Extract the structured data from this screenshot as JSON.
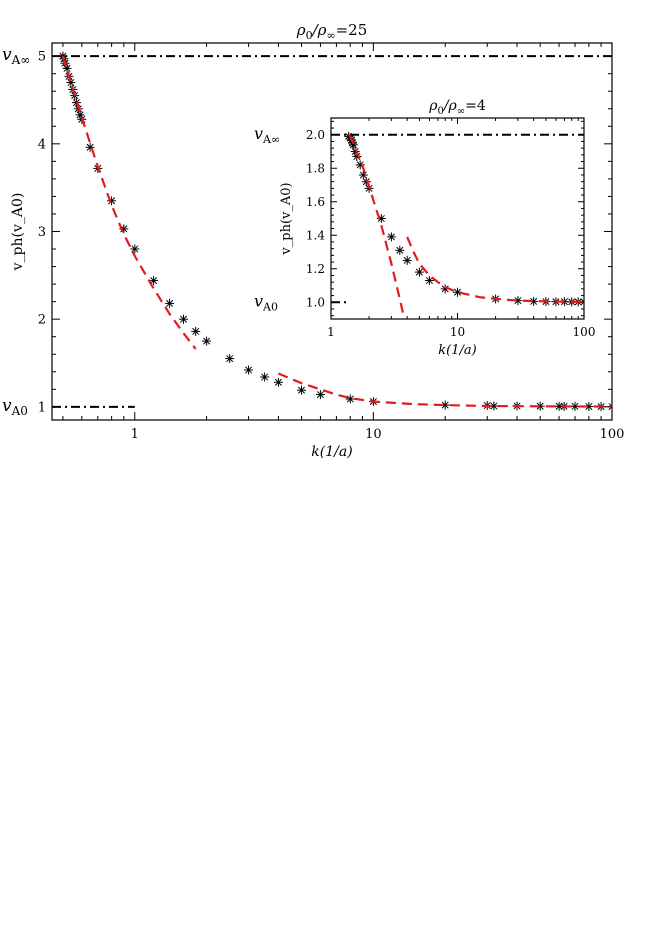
{
  "chart_data": [
    {
      "id": "main",
      "type": "scatter",
      "title_prefix": "ρ",
      "title_sub0": "0",
      "title_mid": "/ρ",
      "title_subinf": "∞",
      "title_value": "=25",
      "xlabel": "k(1/a)",
      "ylabel": "v_ph(v_A0)",
      "xscale": "log",
      "xlim": [
        0.45,
        100
      ],
      "ylim": [
        0.85,
        5.15
      ],
      "xticks": [
        {
          "v": 1,
          "label": "1"
        },
        {
          "v": 10,
          "label": "10"
        },
        {
          "v": 100,
          "label": "100"
        }
      ],
      "yticks": [
        {
          "v": 1,
          "label": "1"
        },
        {
          "v": 2,
          "label": "2"
        },
        {
          "v": 3,
          "label": "3"
        },
        {
          "v": 4,
          "label": "4"
        },
        {
          "v": 5,
          "label": "5"
        }
      ],
      "hlines": [
        {
          "label": "v_A∞",
          "y": 5,
          "x_from": 0.45,
          "x_to": 100
        },
        {
          "label": "v_A0",
          "y": 1,
          "x_from": 0.45,
          "x_to": 1
        }
      ],
      "series": [
        {
          "kind": "stars",
          "color": "#000000",
          "points": [
            [
              0.5,
              5.0
            ],
            [
              0.505,
              4.97
            ],
            [
              0.51,
              4.92
            ],
            [
              0.52,
              4.86
            ],
            [
              0.53,
              4.77
            ],
            [
              0.54,
              4.7
            ],
            [
              0.55,
              4.62
            ],
            [
              0.56,
              4.55
            ],
            [
              0.57,
              4.47
            ],
            [
              0.58,
              4.4
            ],
            [
              0.59,
              4.33
            ],
            [
              0.6,
              4.28
            ],
            [
              0.65,
              3.96
            ],
            [
              0.7,
              3.72
            ],
            [
              0.8,
              3.35
            ],
            [
              0.9,
              3.03
            ],
            [
              1.0,
              2.8
            ],
            [
              1.2,
              2.44
            ],
            [
              1.4,
              2.18
            ],
            [
              1.6,
              2.0
            ],
            [
              1.8,
              1.86
            ],
            [
              2.0,
              1.75
            ],
            [
              2.5,
              1.55
            ],
            [
              3.0,
              1.42
            ],
            [
              3.5,
              1.34
            ],
            [
              4.0,
              1.28
            ],
            [
              5.0,
              1.19
            ],
            [
              6.0,
              1.14
            ],
            [
              8.0,
              1.09
            ],
            [
              10,
              1.06
            ],
            [
              20,
              1.02
            ],
            [
              30,
              1.015
            ],
            [
              32,
              1.01
            ],
            [
              40,
              1.01
            ],
            [
              50,
              1.007
            ],
            [
              60,
              1.006
            ],
            [
              63,
              1.005
            ],
            [
              70,
              1.005
            ],
            [
              80,
              1.004
            ],
            [
              90,
              1.003
            ],
            [
              100,
              1.003
            ]
          ]
        },
        {
          "kind": "dashed",
          "color": "#e41a1c",
          "points": [
            [
              0.5,
              5.0
            ],
            [
              0.55,
              4.63
            ],
            [
              0.6,
              4.3
            ],
            [
              0.7,
              3.74
            ],
            [
              0.8,
              3.3
            ],
            [
              0.9,
              2.97
            ],
            [
              1.0,
              2.72
            ],
            [
              1.2,
              2.35
            ],
            [
              1.4,
              2.06
            ],
            [
              1.6,
              1.84
            ],
            [
              1.8,
              1.66
            ]
          ]
        },
        {
          "kind": "dashed",
          "color": "#e41a1c",
          "points": [
            [
              4.0,
              1.38
            ],
            [
              5.0,
              1.27
            ],
            [
              6.0,
              1.2
            ],
            [
              7.0,
              1.14
            ],
            [
              8.0,
              1.1
            ],
            [
              10,
              1.06
            ],
            [
              15,
              1.03
            ],
            [
              20,
              1.02
            ],
            [
              30,
              1.01
            ],
            [
              50,
              1.006
            ],
            [
              100,
              1.003
            ]
          ]
        }
      ]
    },
    {
      "id": "inset",
      "type": "scatter",
      "title_prefix": "ρ",
      "title_sub0": "0",
      "title_mid": "/ρ",
      "title_subinf": "∞",
      "title_value": "=4",
      "xlabel": "k(1/a)",
      "ylabel": "v_ph(v_A0)",
      "xscale": "log",
      "xlim": [
        1,
        100
      ],
      "ylim": [
        0.9,
        2.1
      ],
      "xticks": [
        {
          "v": 1,
          "label": "1"
        },
        {
          "v": 10,
          "label": "10"
        },
        {
          "v": 100,
          "label": "100"
        }
      ],
      "yticks": [
        {
          "v": 1.0,
          "label": "1.0"
        },
        {
          "v": 1.2,
          "label": "1.2"
        },
        {
          "v": 1.4,
          "label": "1.4"
        },
        {
          "v": 1.6,
          "label": "1.6"
        },
        {
          "v": 1.8,
          "label": "1.8"
        },
        {
          "v": 2.0,
          "label": "2.0"
        }
      ],
      "hlines": [
        {
          "label": "v_A∞",
          "y": 2.0,
          "x_from": 1,
          "x_to": 100
        },
        {
          "label": "v_A0",
          "y": 1.0,
          "x_from": 1,
          "x_to": 1.4
        }
      ],
      "series": [
        {
          "kind": "stars",
          "color": "#000000",
          "points": [
            [
              1.38,
              1.99
            ],
            [
              1.42,
              1.98
            ],
            [
              1.45,
              1.97
            ],
            [
              1.48,
              1.95
            ],
            [
              1.5,
              1.94
            ],
            [
              1.55,
              1.9
            ],
            [
              1.6,
              1.87
            ],
            [
              1.7,
              1.82
            ],
            [
              1.8,
              1.76
            ],
            [
              1.9,
              1.72
            ],
            [
              2.0,
              1.68
            ],
            [
              2.5,
              1.5
            ],
            [
              3.0,
              1.39
            ],
            [
              3.5,
              1.31
            ],
            [
              4.0,
              1.25
            ],
            [
              5.0,
              1.18
            ],
            [
              6.0,
              1.13
            ],
            [
              8.0,
              1.08
            ],
            [
              10,
              1.06
            ],
            [
              20,
              1.02
            ],
            [
              30,
              1.01
            ],
            [
              40,
              1.005
            ],
            [
              50,
              1.004
            ],
            [
              60,
              1.003
            ],
            [
              70,
              1.003
            ],
            [
              80,
              1.002
            ],
            [
              90,
              1.002
            ],
            [
              100,
              1.002
            ]
          ]
        },
        {
          "kind": "dashed",
          "color": "#e41a1c",
          "points": [
            [
              1.4,
              2.0
            ],
            [
              1.6,
              1.9
            ],
            [
              1.8,
              1.8
            ],
            [
              2.0,
              1.69
            ],
            [
              2.5,
              1.46
            ],
            [
              3.0,
              1.23
            ],
            [
              3.5,
              1.02
            ],
            [
              3.8,
              0.9
            ]
          ]
        },
        {
          "kind": "dashed",
          "color": "#e41a1c",
          "points": [
            [
              4.0,
              1.39
            ],
            [
              4.5,
              1.3
            ],
            [
              5.0,
              1.23
            ],
            [
              6.0,
              1.16
            ],
            [
              7.0,
              1.12
            ],
            [
              8.0,
              1.09
            ],
            [
              10,
              1.06
            ],
            [
              15,
              1.03
            ],
            [
              20,
              1.02
            ],
            [
              30,
              1.01
            ],
            [
              50,
              1.005
            ],
            [
              100,
              1.002
            ]
          ]
        }
      ]
    }
  ]
}
